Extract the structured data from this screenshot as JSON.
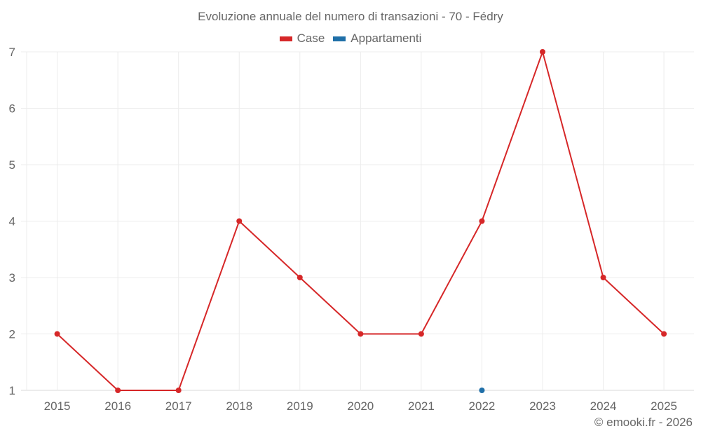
{
  "chart_data": {
    "type": "line",
    "title": "Evoluzione annuale del numero di transazioni - 70 - Fédry",
    "xlabel": "",
    "ylabel": "",
    "categories": [
      "2015",
      "2016",
      "2017",
      "2018",
      "2019",
      "2020",
      "2021",
      "2022",
      "2023",
      "2024",
      "2025"
    ],
    "series": [
      {
        "name": "Case",
        "color": "#d62728",
        "values": [
          2,
          1,
          1,
          4,
          3,
          2,
          2,
          4,
          7,
          3,
          2
        ]
      },
      {
        "name": "Appartamenti",
        "color": "#1f6fa8",
        "values": [
          null,
          null,
          null,
          null,
          null,
          null,
          null,
          1,
          null,
          null,
          null
        ]
      }
    ],
    "yticks": [
      1,
      2,
      3,
      4,
      5,
      6,
      7
    ],
    "ylim": [
      1,
      7
    ],
    "grid": true,
    "legend_position": "top"
  },
  "credit": "© emooki.fr - 2026"
}
